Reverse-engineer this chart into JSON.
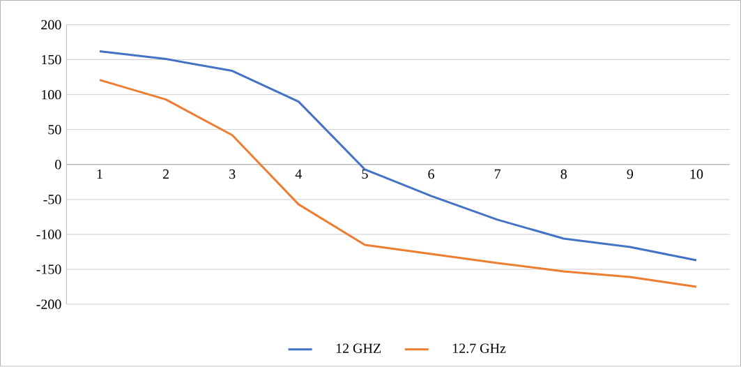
{
  "chart_data": {
    "type": "line",
    "categories": [
      "1",
      "2",
      "3",
      "4",
      "5",
      "6",
      "7",
      "8",
      "9",
      "10"
    ],
    "series": [
      {
        "name": "12 GHZ",
        "color": "#4472c4",
        "values": [
          162,
          151,
          134,
          90,
          -7,
          -45,
          -79,
          -106,
          -118,
          -137
        ]
      },
      {
        "name": "12.7 GHz",
        "color": "#ed7d31",
        "values": [
          121,
          93,
          42,
          -57,
          -115,
          -128,
          -141,
          -153,
          -161,
          -175
        ]
      }
    ],
    "ylim": [
      -200,
      200
    ],
    "yticks": [
      -200,
      -150,
      -100,
      -50,
      0,
      50,
      100,
      150,
      200
    ],
    "grid": "y",
    "legend": "bottom"
  }
}
